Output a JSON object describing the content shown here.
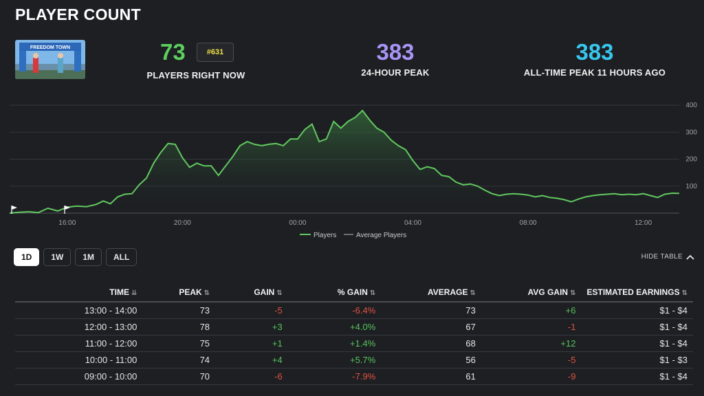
{
  "title": "PLAYER COUNT",
  "stats": {
    "now": {
      "value": "73",
      "label": "PLAYERS RIGHT NOW",
      "rank": "#631",
      "color": "#5ccf5e"
    },
    "peak24": {
      "value": "383",
      "label": "24-HOUR PEAK",
      "color": "#a894f4"
    },
    "alltime": {
      "value": "383",
      "label": "ALL-TIME PEAK 11 HOURS AGO",
      "color": "#37c6ec"
    }
  },
  "thumbnail": {
    "icon": "map-thumbnail-image",
    "sign_text": "FREEDOM TOWN"
  },
  "chart_data": {
    "type": "area",
    "x_tick_labels": [
      "16:00",
      "20:00",
      "00:00",
      "04:00",
      "08:00",
      "12:00"
    ],
    "ylim": [
      0,
      400
    ],
    "y_ticks": [
      100,
      200,
      300,
      400
    ],
    "grid": true,
    "legend": [
      "Players",
      "Average Players"
    ],
    "legend_position": "bottom-center",
    "series": [
      {
        "name": "Players",
        "color": "#62c95f",
        "points": [
          [
            14.0,
            0
          ],
          [
            14.33,
            3
          ],
          [
            14.67,
            5
          ],
          [
            15.0,
            2
          ],
          [
            15.33,
            18
          ],
          [
            15.67,
            8
          ],
          [
            16.0,
            22
          ],
          [
            16.33,
            26
          ],
          [
            16.67,
            24
          ],
          [
            17.0,
            32
          ],
          [
            17.25,
            45
          ],
          [
            17.5,
            35
          ],
          [
            17.75,
            60
          ],
          [
            18.0,
            70
          ],
          [
            18.25,
            72
          ],
          [
            18.5,
            105
          ],
          [
            18.75,
            130
          ],
          [
            19.0,
            185
          ],
          [
            19.25,
            225
          ],
          [
            19.5,
            258
          ],
          [
            19.75,
            255
          ],
          [
            20.0,
            205
          ],
          [
            20.25,
            170
          ],
          [
            20.5,
            185
          ],
          [
            20.75,
            175
          ],
          [
            21.0,
            175
          ],
          [
            21.25,
            140
          ],
          [
            21.5,
            175
          ],
          [
            21.75,
            210
          ],
          [
            22.0,
            250
          ],
          [
            22.25,
            265
          ],
          [
            22.5,
            255
          ],
          [
            22.75,
            250
          ],
          [
            23.0,
            255
          ],
          [
            23.25,
            258
          ],
          [
            23.5,
            250
          ],
          [
            23.75,
            275
          ],
          [
            24.0,
            275
          ],
          [
            24.25,
            310
          ],
          [
            24.5,
            330
          ],
          [
            24.75,
            265
          ],
          [
            25.0,
            275
          ],
          [
            25.25,
            340
          ],
          [
            25.5,
            315
          ],
          [
            25.75,
            340
          ],
          [
            26.0,
            355
          ],
          [
            26.25,
            380
          ],
          [
            26.5,
            345
          ],
          [
            26.75,
            315
          ],
          [
            27.0,
            300
          ],
          [
            27.25,
            270
          ],
          [
            27.5,
            250
          ],
          [
            27.75,
            235
          ],
          [
            28.0,
            195
          ],
          [
            28.25,
            162
          ],
          [
            28.5,
            172
          ],
          [
            28.75,
            165
          ],
          [
            29.0,
            140
          ],
          [
            29.25,
            135
          ],
          [
            29.5,
            115
          ],
          [
            29.75,
            105
          ],
          [
            30.0,
            108
          ],
          [
            30.25,
            100
          ],
          [
            30.5,
            85
          ],
          [
            30.75,
            72
          ],
          [
            31.0,
            65
          ],
          [
            31.25,
            70
          ],
          [
            31.5,
            72
          ],
          [
            31.75,
            70
          ],
          [
            32.0,
            67
          ],
          [
            32.25,
            60
          ],
          [
            32.5,
            65
          ],
          [
            32.75,
            58
          ],
          [
            33.0,
            55
          ],
          [
            33.25,
            50
          ],
          [
            33.5,
            42
          ],
          [
            33.75,
            52
          ],
          [
            34.0,
            60
          ],
          [
            34.25,
            65
          ],
          [
            34.5,
            68
          ],
          [
            34.75,
            70
          ],
          [
            35.0,
            72
          ],
          [
            35.25,
            68
          ],
          [
            35.5,
            70
          ],
          [
            35.75,
            68
          ],
          [
            36.0,
            72
          ],
          [
            36.25,
            65
          ],
          [
            36.5,
            58
          ],
          [
            36.75,
            70
          ],
          [
            37.0,
            74
          ],
          [
            37.25,
            73
          ]
        ]
      }
    ]
  },
  "range_buttons": [
    {
      "label": "1D",
      "active": true
    },
    {
      "label": "1W",
      "active": false
    },
    {
      "label": "1M",
      "active": false
    },
    {
      "label": "ALL",
      "active": false
    }
  ],
  "hide_table_label": "HIDE TABLE",
  "table": {
    "headers": [
      "TIME",
      "PEAK",
      "GAIN",
      "% GAIN",
      "AVERAGE",
      "AVG GAIN",
      "ESTIMATED EARNINGS"
    ],
    "rows": [
      [
        "13:00 - 14:00",
        "73",
        "-5",
        "-6.4%",
        "73",
        "+6",
        "$1 - $4"
      ],
      [
        "12:00 - 13:00",
        "78",
        "+3",
        "+4.0%",
        "67",
        "-1",
        "$1 - $4"
      ],
      [
        "11:00 - 12:00",
        "75",
        "+1",
        "+1.4%",
        "68",
        "+12",
        "$1 - $4"
      ],
      [
        "10:00 - 11:00",
        "74",
        "+4",
        "+5.7%",
        "56",
        "-5",
        "$1 - $3"
      ],
      [
        "09:00 - 10:00",
        "70",
        "-6",
        "-7.9%",
        "61",
        "-9",
        "$1 - $4"
      ]
    ]
  }
}
